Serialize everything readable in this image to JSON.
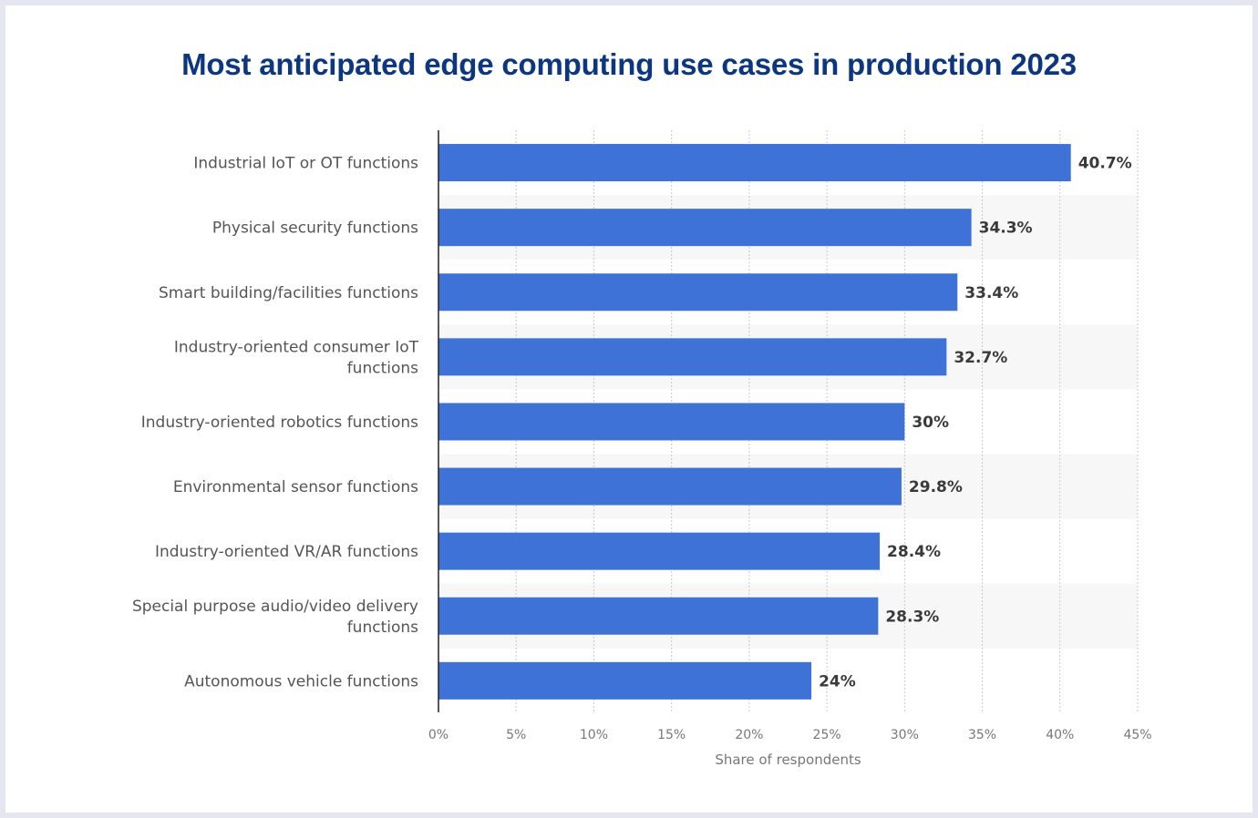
{
  "chart_data": {
    "type": "bar",
    "orientation": "horizontal",
    "title": "Most anticipated edge computing use cases in production 2023",
    "xlabel": "Share of respondents",
    "ylabel": "",
    "xlim": [
      0,
      45
    ],
    "ticks": [
      0,
      5,
      10,
      15,
      20,
      25,
      30,
      35,
      40,
      45
    ],
    "tick_labels": [
      "0%",
      "5%",
      "10%",
      "15%",
      "20%",
      "25%",
      "30%",
      "35%",
      "40%",
      "45%"
    ],
    "grid": true,
    "categories": [
      [
        "Industrial IoT or OT functions"
      ],
      [
        "Physical security functions"
      ],
      [
        "Smart building/facilities functions"
      ],
      [
        "Industry-oriented consumer IoT",
        "functions"
      ],
      [
        "Industry-oriented robotics functions"
      ],
      [
        "Environmental sensor functions"
      ],
      [
        "Industry-oriented VR/AR functions"
      ],
      [
        "Special purpose audio/video delivery",
        "functions"
      ],
      [
        "Autonomous vehicle functions"
      ]
    ],
    "values": [
      40.7,
      34.3,
      33.4,
      32.7,
      30,
      29.8,
      28.4,
      28.3,
      24
    ],
    "value_labels": [
      "40.7%",
      "34.3%",
      "33.4%",
      "32.7%",
      "30%",
      "29.8%",
      "28.4%",
      "28.3%",
      "24%"
    ],
    "bar_color": "#3f72d6",
    "band_color": "#f7f7f7"
  }
}
